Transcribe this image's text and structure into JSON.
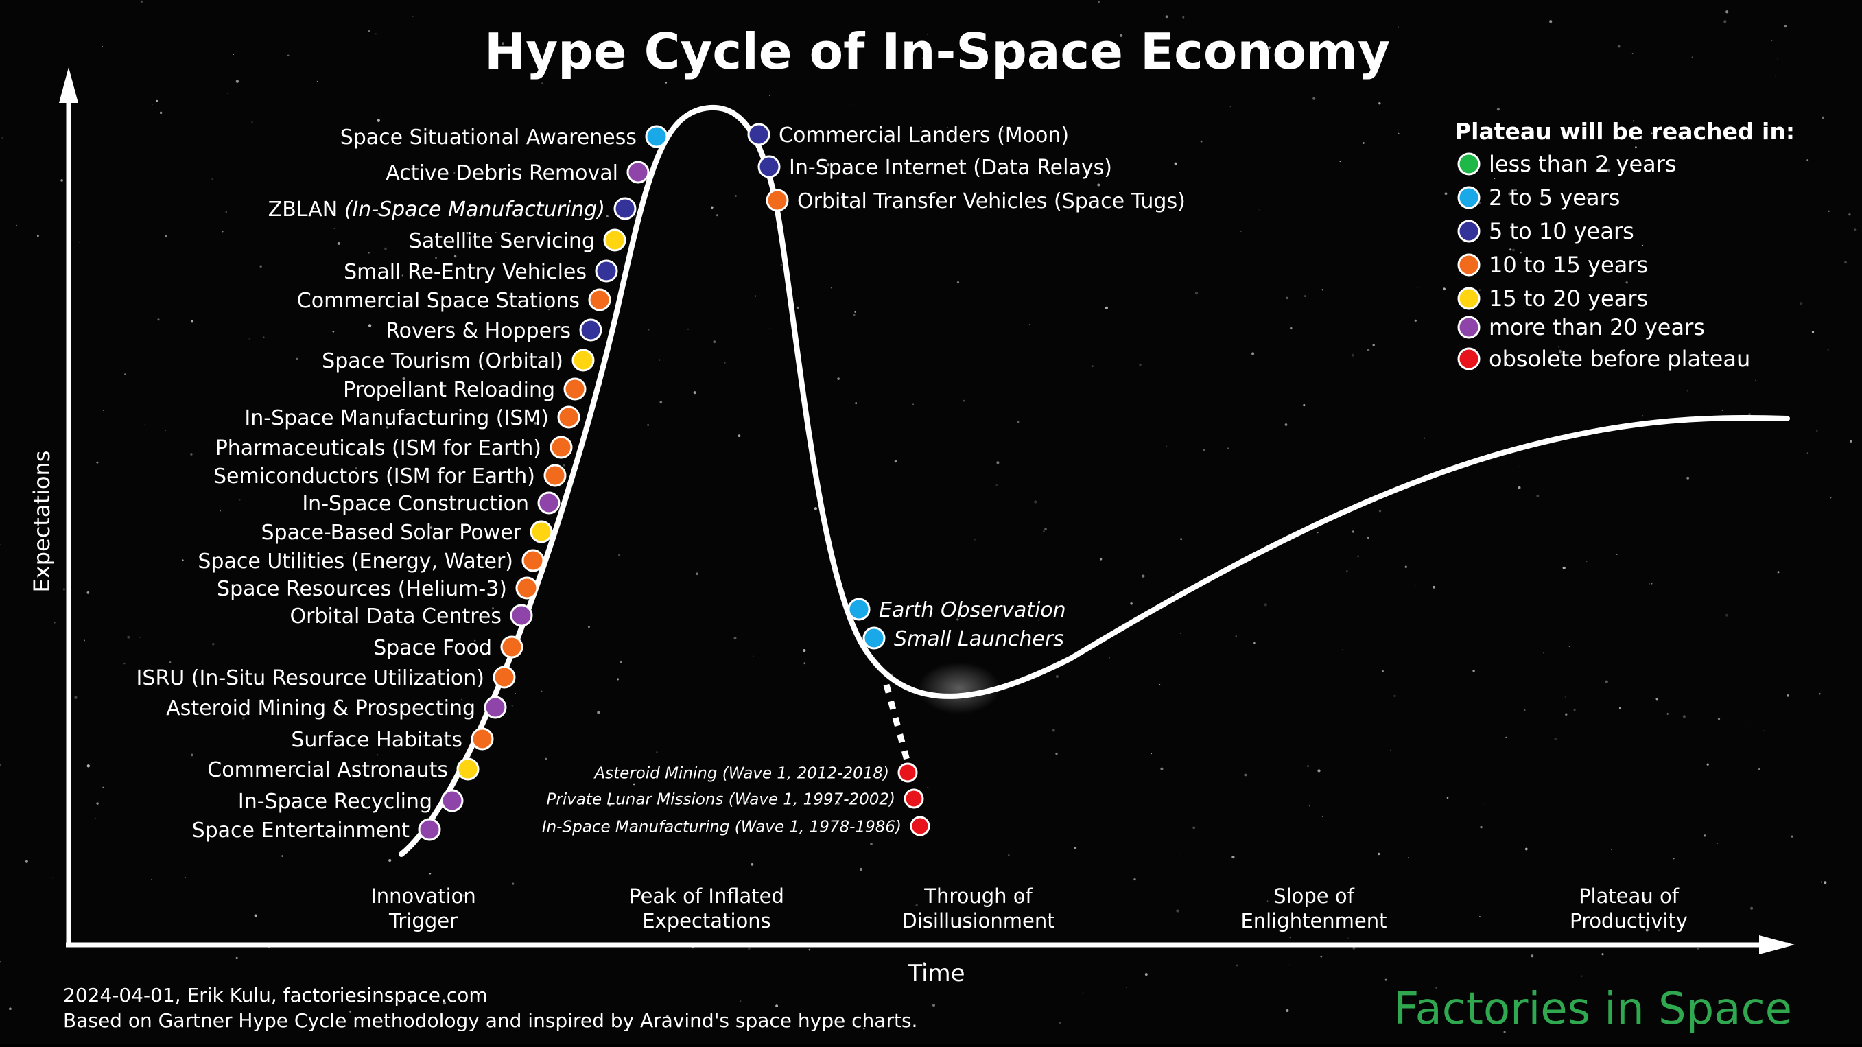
{
  "title": "Hype Cycle of In-Space Economy",
  "axes": {
    "y_label": "Expectations",
    "x_label": "Time"
  },
  "phases": [
    [
      "Innovation",
      "Trigger"
    ],
    [
      "Peak of Inflated",
      "Expectations"
    ],
    [
      "Through of",
      "Disillusionment"
    ],
    [
      "Slope of",
      "Enlightenment"
    ],
    [
      "Plateau of",
      "Productivity"
    ]
  ],
  "legend": {
    "title": "Plateau will be reached in:",
    "items": [
      {
        "label": "less than 2 years",
        "color": "#1db847"
      },
      {
        "label": "2 to 5 years",
        "color": "#19a8e8"
      },
      {
        "label": "5 to 10 years",
        "color": "#33339a"
      },
      {
        "label": "10 to 15 years",
        "color": "#f26a1b"
      },
      {
        "label": "15 to 20 years",
        "color": "#ffd512"
      },
      {
        "label": "more than 20 years",
        "color": "#8e44a8"
      },
      {
        "label": "obsolete before plateau",
        "color": "#e8141c"
      }
    ]
  },
  "chart_data": {
    "type": "scatter",
    "curve": "hype-cycle",
    "rising_technologies": [
      {
        "label": "Space Situational Awareness",
        "category": "2 to 5 years"
      },
      {
        "label": "Active Debris Removal",
        "category": "more than 20 years"
      },
      {
        "label": "ZBLAN ",
        "label_italic": "(In-Space Manufacturing)",
        "category": "5 to 10 years"
      },
      {
        "label": "Satellite Servicing",
        "category": "15 to 20 years"
      },
      {
        "label": "Small Re-Entry Vehicles",
        "category": "5 to 10 years"
      },
      {
        "label": "Commercial Space Stations",
        "category": "10 to 15 years"
      },
      {
        "label": "Rovers & Hoppers",
        "category": "5 to 10 years"
      },
      {
        "label": "Space Tourism (Orbital)",
        "category": "15 to 20 years"
      },
      {
        "label": "Propellant Reloading",
        "category": "10 to 15 years"
      },
      {
        "label": "In-Space Manufacturing (ISM)",
        "category": "10 to 15 years"
      },
      {
        "label": "Pharmaceuticals (ISM for Earth)",
        "category": "10 to 15 years"
      },
      {
        "label": "Semiconductors (ISM for Earth)",
        "category": "10 to 15 years"
      },
      {
        "label": "In-Space Construction",
        "category": "more than 20 years"
      },
      {
        "label": "Space-Based Solar Power",
        "category": "15 to 20 years"
      },
      {
        "label": "Space Utilities (Energy, Water)",
        "category": "10 to 15 years"
      },
      {
        "label": "Space Resources (Helium-3)",
        "category": "10 to 15 years"
      },
      {
        "label": "Orbital Data Centres",
        "category": "more than 20 years"
      },
      {
        "label": "Space Food",
        "category": "10 to 15 years"
      },
      {
        "label": "ISRU (In-Situ Resource Utilization)",
        "category": "10 to 15 years"
      },
      {
        "label": "Asteroid Mining & Prospecting",
        "category": "more than 20 years"
      },
      {
        "label": "Surface Habitats",
        "category": "10 to 15 years"
      },
      {
        "label": "Commercial Astronauts",
        "category": "15 to 20 years"
      },
      {
        "label": "In-Space Recycling",
        "category": "more than 20 years"
      },
      {
        "label": "Space Entertainment",
        "category": "more than 20 years"
      }
    ],
    "falling_technologies": [
      {
        "label": "Commercial Landers (Moon)",
        "category": "5 to 10 years"
      },
      {
        "label": "In-Space Internet (Data Relays)",
        "category": "5 to 10 years"
      },
      {
        "label": "Orbital Transfer Vehicles (Space Tugs)",
        "category": "10 to 15 years"
      }
    ],
    "trough_technologies": [
      {
        "label": "Earth Observation",
        "category": "2 to 5 years"
      },
      {
        "label": "Small Launchers",
        "category": "2 to 5 years"
      }
    ],
    "obsolete_technologies": [
      {
        "label": "Asteroid Mining (Wave 1, 2012-2018)",
        "category": "obsolete before plateau"
      },
      {
        "label": "Private Lunar Missions (Wave 1, 1997-2002)",
        "category": "obsolete before plateau"
      },
      {
        "label": "In-Space Manufacturing (Wave 1, 1978-1986)",
        "category": "obsolete before plateau"
      }
    ]
  },
  "footer": {
    "credit": "2024-04-01, Erik Kulu, factoriesinspace.com",
    "note": "Based on Gartner Hype Cycle methodology and inspired by Aravind's space hype charts.",
    "brand": "Factories in Space"
  },
  "colors": {
    "background": "#050505",
    "curve": "#ffffff",
    "brand": "#2fa84f"
  }
}
